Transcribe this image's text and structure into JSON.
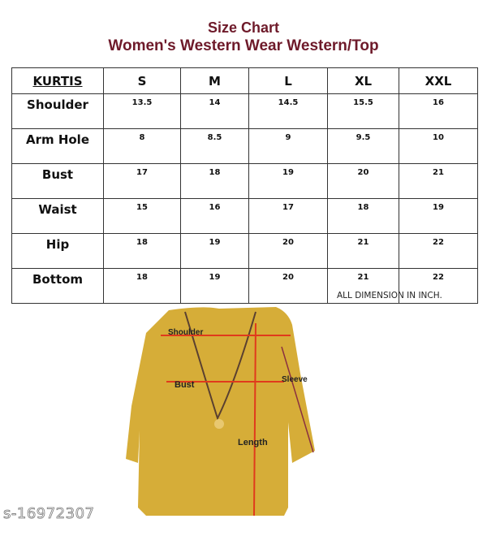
{
  "title": "Size Chart",
  "subtitle": "Women's Western Wear Western/Top",
  "table": {
    "headers": [
      "KURTIS",
      "S",
      "M",
      "L",
      "XL",
      "XXL"
    ],
    "rows": [
      {
        "label": "Shoulder",
        "values": [
          "13.5",
          "14",
          "14.5",
          "15.5",
          "16"
        ]
      },
      {
        "label": "Arm Hole",
        "values": [
          "8",
          "8.5",
          "9",
          "9.5",
          "10"
        ]
      },
      {
        "label": "Bust",
        "values": [
          "17",
          "18",
          "19",
          "20",
          "21"
        ]
      },
      {
        "label": "Waist",
        "values": [
          "15",
          "16",
          "17",
          "18",
          "19"
        ]
      },
      {
        "label": "Hip",
        "values": [
          "18",
          "19",
          "20",
          "21",
          "22"
        ]
      },
      {
        "label": "Bottom",
        "values": [
          "18",
          "19",
          "20",
          "21",
          "22"
        ]
      }
    ]
  },
  "note": "ALL DIMENSION IN INCH.",
  "diagram": {
    "labels": {
      "shoulder": "Shoulder",
      "bust": "Bust",
      "sleeve": "Sleeve",
      "length": "Length"
    },
    "garment_color": "#d6ad38",
    "line_color": "#e03a1c"
  },
  "watermark": "s-16972307"
}
